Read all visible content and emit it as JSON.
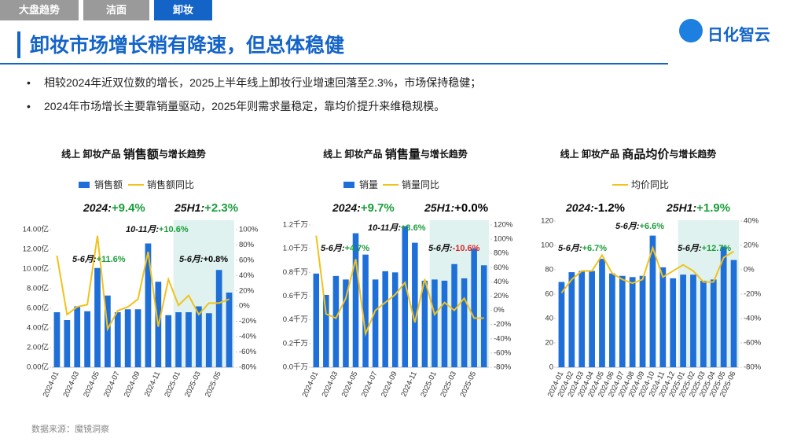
{
  "header": {
    "tabs": [
      "大盘趋势",
      "洁面",
      "卸妆"
    ],
    "title": "卸妆市场增长稍有降速，但总体稳健",
    "logo": "日化智云"
  },
  "bullets": [
    "相较2024年近双位数的增长，2025上半年线上卸妆行业增速回落至2.3%，市场保持稳健；",
    "2024年市场增长主要靠销量驱动，2025年则需求量稳定，靠均价提升来维稳规模。"
  ],
  "source": "数据来源：魔镜洞察",
  "chart_data": [
    {
      "type": "bar-line",
      "title_parts": [
        "线上 卸妆产品 ",
        "销售额",
        "与增长趋势"
      ],
      "categories": [
        "2024-01",
        null,
        "2024-03",
        null,
        "2024-05",
        null,
        "2024-07",
        null,
        "2024-09",
        null,
        "2024-11",
        null,
        "2025-01",
        null,
        "2025-03",
        null,
        "2025-05",
        null
      ],
      "series": [
        {
          "name": "销售额",
          "kind": "bar",
          "color": "#1f6fd8",
          "values": [
            5.6,
            4.8,
            6.2,
            5.7,
            10.1,
            7.3,
            5.6,
            5.9,
            5.9,
            12.6,
            8.7,
            5.3,
            5.6,
            5.6,
            6.2,
            5.5,
            9.9,
            7.6
          ]
        },
        {
          "name": "销售额同比",
          "kind": "line",
          "axis": "y2",
          "color": "#f2c21b",
          "values": [
            66,
            -11,
            -1,
            2,
            92,
            -30,
            -6,
            -1,
            9,
            71,
            -27,
            35,
            1,
            14,
            -11,
            4,
            4,
            9
          ]
        }
      ],
      "ylim": [
        0,
        14
      ],
      "yticks": [
        {
          "value": 0,
          "label": "0.00亿"
        },
        {
          "value": 2,
          "label": "2.00亿"
        },
        {
          "value": 4,
          "label": "4.00亿"
        },
        {
          "value": 6,
          "label": "6.00亿"
        },
        {
          "value": 8,
          "label": "8.00亿"
        },
        {
          "value": 10,
          "label": "10.00亿"
        },
        {
          "value": 12,
          "label": "12.00亿"
        },
        {
          "value": 14,
          "label": "14.00亿"
        }
      ],
      "y2lim": [
        -80,
        100
      ],
      "y2ticks": [
        {
          "value": -80,
          "label": "-80%"
        },
        {
          "value": -60,
          "label": "-60%"
        },
        {
          "value": -40,
          "label": "-40%"
        },
        {
          "value": -20,
          "label": "-20%"
        },
        {
          "value": 0,
          "label": "0%"
        },
        {
          "value": 20,
          "label": "20%"
        },
        {
          "value": 40,
          "label": "40%"
        },
        {
          "value": 60,
          "label": "60%"
        },
        {
          "value": 80,
          "label": "80%"
        },
        {
          "value": 100,
          "label": "100%"
        }
      ],
      "grid": false,
      "annotations": [
        {
          "lead": "2024:",
          "value": "+9.4%",
          "color": "#1a9e3a"
        },
        {
          "lead": "25H1:",
          "value": "+2.3%",
          "color": "#1a9e3a"
        },
        {
          "lead": "10-11月:",
          "value": "+10.6%",
          "color": "#1a9e3a"
        },
        {
          "lead": "5-6月:",
          "value": "+11.6%",
          "color": "#1a9e3a"
        },
        {
          "lead": "5-6月:",
          "value": "+0.8%",
          "color": "#000000"
        }
      ]
    },
    {
      "type": "bar-line",
      "title_parts": [
        "线上 卸妆产品 ",
        "销售量",
        "与增长趋势"
      ],
      "categories": [
        "2024-01",
        null,
        "2024-03",
        null,
        "2024-05",
        null,
        "2024-07",
        null,
        "2024-09",
        null,
        "2024-11",
        null,
        "2025-01",
        null,
        "2025-03",
        null,
        "2025-05",
        null
      ],
      "series": [
        {
          "name": "销量",
          "kind": "bar",
          "color": "#1f6fd8",
          "values": [
            0.79,
            0.61,
            0.77,
            0.74,
            1.13,
            0.95,
            0.74,
            0.81,
            0.8,
            1.19,
            1.05,
            0.73,
            0.74,
            0.73,
            0.87,
            0.75,
            1.0,
            0.86
          ]
        },
        {
          "name": "销量同比",
          "kind": "line",
          "axis": "y2",
          "color": "#f2c21b",
          "values": [
            105,
            -5,
            -11,
            17,
            72,
            -33,
            0,
            11,
            22,
            39,
            -17,
            44,
            -6,
            11,
            0,
            17,
            -11,
            -11
          ]
        }
      ],
      "ylim": [
        0,
        1.2
      ],
      "yticks": [
        {
          "value": 0,
          "label": "0.0千万"
        },
        {
          "value": 0.2,
          "label": "0.2千万"
        },
        {
          "value": 0.4,
          "label": "0.4千万"
        },
        {
          "value": 0.6,
          "label": "0.6千万"
        },
        {
          "value": 0.8,
          "label": "0.8千万"
        },
        {
          "value": 1.0,
          "label": "1.0千万"
        },
        {
          "value": 1.2,
          "label": "1.2千万"
        }
      ],
      "y2lim": [
        -80,
        120
      ],
      "y2ticks": [
        {
          "value": -80,
          "label": "-80%"
        },
        {
          "value": -60,
          "label": "-60%"
        },
        {
          "value": -40,
          "label": "-40%"
        },
        {
          "value": -20,
          "label": "-20%"
        },
        {
          "value": 0,
          "label": "0%"
        },
        {
          "value": 20,
          "label": "20%"
        },
        {
          "value": 40,
          "label": "40%"
        },
        {
          "value": 60,
          "label": "60%"
        },
        {
          "value": 80,
          "label": "80%"
        },
        {
          "value": 100,
          "label": "100%"
        },
        {
          "value": 120,
          "label": "120%"
        }
      ],
      "grid": false,
      "annotations": [
        {
          "lead": "2024:",
          "value": "+9.7%",
          "color": "#1a9e3a"
        },
        {
          "lead": "25H1:",
          "value": "+0.0%",
          "color": "#000000"
        },
        {
          "lead": "10-11月:",
          "value": "+3.6%",
          "color": "#1a9e3a"
        },
        {
          "lead": "5-6月:",
          "value": "+4.7%",
          "color": "#1a9e3a"
        },
        {
          "lead": "5-6月:",
          "value": "-10.6%",
          "color": "#d62828"
        }
      ]
    },
    {
      "type": "bar-line",
      "title_parts": [
        "线上 卸妆产品 ",
        "商品均价",
        "与增长趋势"
      ],
      "categories": [
        "2024-01",
        "2024-02",
        "2024-03",
        "2024-04",
        "2024-05",
        "2024-06",
        "2024-07",
        "2024-08",
        "2024-09",
        "2024-10",
        "2024-11",
        "2024-12",
        "2025-01",
        "2025-02",
        "2025-03",
        "2025-04",
        "2025-05",
        "2025-06"
      ],
      "series": [
        {
          "kind": "bar",
          "color": "#1f6fd8",
          "values": [
            70,
            78,
            79,
            79,
            89,
            77,
            75,
            74,
            75,
            108,
            82,
            73,
            76,
            76,
            71,
            72,
            99,
            88
          ]
        },
        {
          "name": "均价同比",
          "kind": "line",
          "axis": "y2",
          "color": "#f2c21b",
          "values": [
            -19,
            -8,
            -1,
            -1,
            12,
            -3,
            -8,
            -11,
            -8,
            18,
            -6,
            -1,
            4,
            -1,
            -10,
            -10,
            10,
            15
          ]
        }
      ],
      "ylim": [
        0,
        120
      ],
      "yticks": [
        0,
        20,
        40,
        60,
        80,
        100,
        120
      ],
      "y2lim": [
        -80,
        40
      ],
      "y2ticks": [
        {
          "value": -80,
          "label": "-80%"
        },
        {
          "value": -60,
          "label": "-60%"
        },
        {
          "value": -40,
          "label": "-40%"
        },
        {
          "value": -20,
          "label": "-20%"
        },
        {
          "value": 0,
          "label": "0%"
        },
        {
          "value": 20,
          "label": "20%"
        },
        {
          "value": 40,
          "label": "40%"
        }
      ],
      "grid": false,
      "annotations": [
        {
          "lead": "2024:",
          "value": "-1.2%",
          "color": "#000000"
        },
        {
          "lead": "25H1:",
          "value": "+1.9%",
          "color": "#1a9e3a"
        },
        {
          "lead": "5-6月:",
          "value": "+6.6%",
          "color": "#1a9e3a"
        },
        {
          "lead": "5-6月:",
          "value": "+6.7%",
          "color": "#1a9e3a"
        },
        {
          "lead": "5-6月:",
          "value": "+12.7%",
          "color": "#1a9e3a"
        }
      ]
    }
  ]
}
